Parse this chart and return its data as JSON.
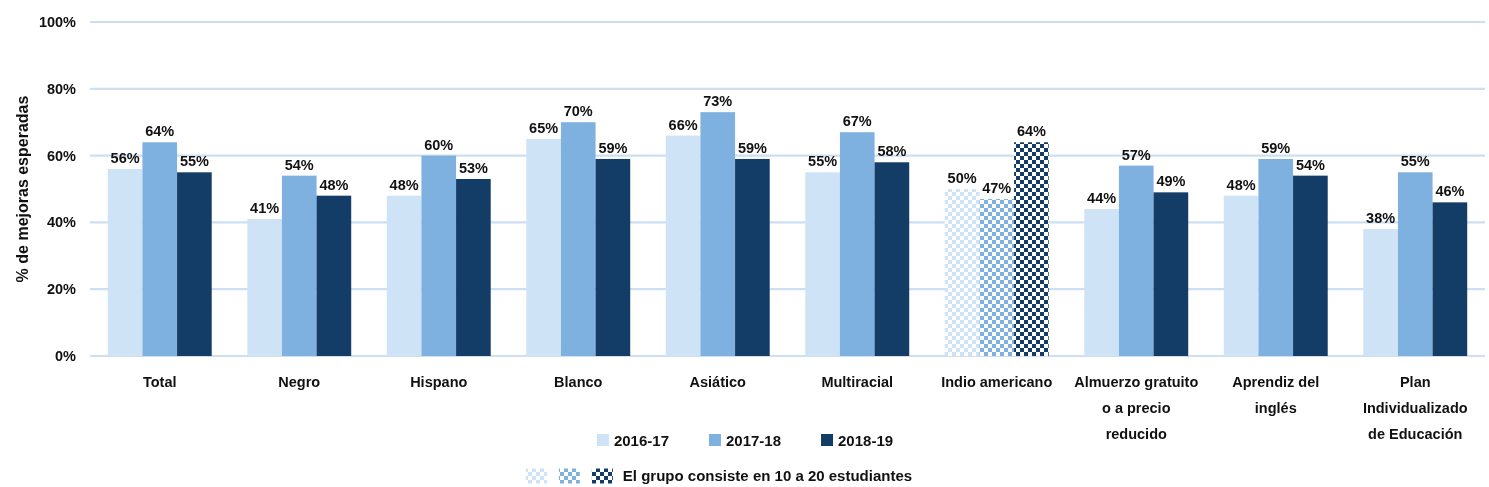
{
  "chart_data": {
    "type": "bar",
    "ylabel": "% de mejoras esperadas",
    "categories": [
      "Total",
      "Negro",
      "Hispano",
      "Blanco",
      "Asiático",
      "Multiracial",
      "Indio americano",
      "Almuerzo gratuito o a precio reducido",
      "Aprendiz del inglés",
      "Plan Individualizado de Educación"
    ],
    "series": [
      {
        "name": "2016-17",
        "color": "#cfe3f6",
        "colors": [
          "#cfe3f6",
          "#cfe3f6",
          "#cfe3f6",
          "#cfe3f6",
          "#cfe3f6",
          "#cfe3f6",
          "#ffffff",
          "#cfe3f6",
          "#cfe3f6",
          "#cfe3f6"
        ],
        "values": [
          56,
          41,
          48,
          65,
          66,
          55,
          50,
          44,
          48,
          38
        ],
        "value_labels": [
          "56%",
          "41%",
          "48%",
          "65%",
          "66%",
          "55%",
          "50%",
          "44%",
          "48%",
          "38%"
        ]
      },
      {
        "name": "2017-18",
        "color": "#7fb1e0",
        "colors": [
          "#7fb1e0",
          "#7fb1e0",
          "#7fb1e0",
          "#7fb1e0",
          "#7fb1e0",
          "#7fb1e0",
          "#ffffff",
          "#7fb1e0",
          "#7fb1e0",
          "#7fb1e0"
        ],
        "values": [
          64,
          54,
          60,
          70,
          73,
          67,
          47,
          57,
          59,
          55
        ],
        "value_labels": [
          "64%",
          "54%",
          "60%",
          "70%",
          "73%",
          "67%",
          "47%",
          "57%",
          "59%",
          "55%"
        ]
      },
      {
        "name": "2018-19",
        "color": "#133d66",
        "colors": [
          "#133d66",
          "#133d66",
          "#133d66",
          "#133d66",
          "#133d66",
          "#133d66",
          "#ffffff",
          "#133d66",
          "#133d66",
          "#133d66"
        ],
        "values": [
          55,
          48,
          53,
          59,
          59,
          58,
          64,
          49,
          54,
          46
        ],
        "value_labels": [
          "55%",
          "48%",
          "53%",
          "59%",
          "59%",
          "58%",
          "64%",
          "49%",
          "54%",
          "46%"
        ]
      }
    ],
    "ylim": [
      0,
      100
    ],
    "yticks": [
      {
        "value": 0,
        "label": "0%"
      },
      {
        "value": 20,
        "label": "20%"
      },
      {
        "value": 40,
        "label": "40%"
      },
      {
        "value": 60,
        "label": "60%"
      },
      {
        "value": 80,
        "label": "80%"
      },
      {
        "value": 100,
        "label": "100%"
      }
    ],
    "grid": "y",
    "legend": "bottom",
    "annotations": [
      "El grupo consiste en 10 a 20 estudiantes"
    ]
  }
}
